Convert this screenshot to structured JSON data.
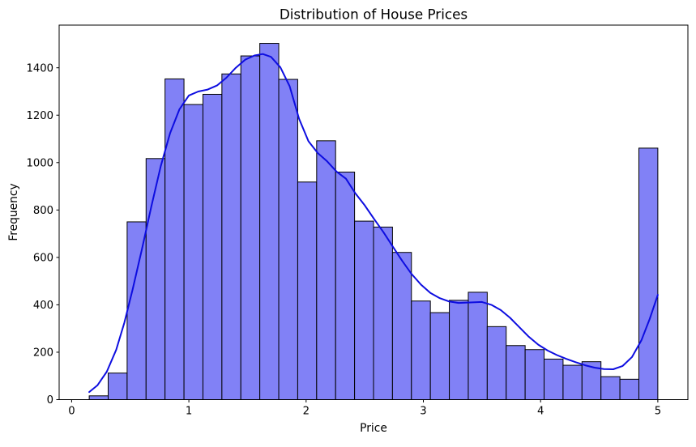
{
  "chart_data": {
    "type": "bar",
    "subtype": "histogram-with-kde-overlay",
    "title": "Distribution of House Prices",
    "xlabel": "Price",
    "ylabel": "Frequency",
    "xlim": [
      -0.1065,
      5.2565
    ],
    "ylim": [
      0,
      1580
    ],
    "x_ticks": [
      0,
      1,
      2,
      3,
      4,
      5
    ],
    "y_ticks": [
      0,
      200,
      400,
      600,
      800,
      1000,
      1200,
      1400
    ],
    "grid": false,
    "legend": false,
    "bins": {
      "start": 0.15,
      "end": 5.0,
      "count": 30,
      "width": 0.1617
    },
    "bar_counts": [
      16,
      112,
      750,
      1017,
      1353,
      1245,
      1288,
      1374,
      1450,
      1503,
      1351,
      918,
      1092,
      960,
      753,
      728,
      621,
      416,
      367,
      419,
      453,
      308,
      228,
      211,
      171,
      145,
      160,
      97,
      86,
      1061
    ],
    "kde_curve": {
      "x": [
        0.15,
        0.22,
        0.3,
        0.38,
        0.45,
        0.52,
        0.6,
        0.68,
        0.76,
        0.84,
        0.92,
        1.0,
        1.08,
        1.16,
        1.24,
        1.32,
        1.4,
        1.48,
        1.56,
        1.63,
        1.7,
        1.78,
        1.86,
        1.94,
        2.02,
        2.1,
        2.18,
        2.26,
        2.34,
        2.42,
        2.5,
        2.58,
        2.66,
        2.74,
        2.82,
        2.9,
        2.98,
        3.06,
        3.14,
        3.22,
        3.3,
        3.4,
        3.5,
        3.58,
        3.66,
        3.74,
        3.82,
        3.9,
        3.98,
        4.06,
        4.14,
        4.22,
        4.3,
        4.38,
        4.46,
        4.54,
        4.62,
        4.7,
        4.78,
        4.86,
        4.93,
        5.0
      ],
      "y": [
        32,
        60,
        118,
        210,
        325,
        465,
        635,
        815,
        985,
        1125,
        1225,
        1283,
        1300,
        1308,
        1325,
        1358,
        1400,
        1434,
        1452,
        1458,
        1446,
        1402,
        1322,
        1185,
        1090,
        1040,
        1005,
        962,
        932,
        870,
        820,
        762,
        706,
        645,
        585,
        530,
        485,
        450,
        428,
        414,
        408,
        410,
        412,
        400,
        378,
        345,
        305,
        265,
        232,
        207,
        188,
        172,
        158,
        145,
        135,
        129,
        128,
        142,
        180,
        250,
        340,
        442
      ]
    },
    "colors": {
      "bar_fill": "#8181f6",
      "bar_edge": "#000000",
      "kde_line": "#0d0de0",
      "axis": "#000000",
      "background": "#ffffff",
      "text": "#000000"
    }
  }
}
